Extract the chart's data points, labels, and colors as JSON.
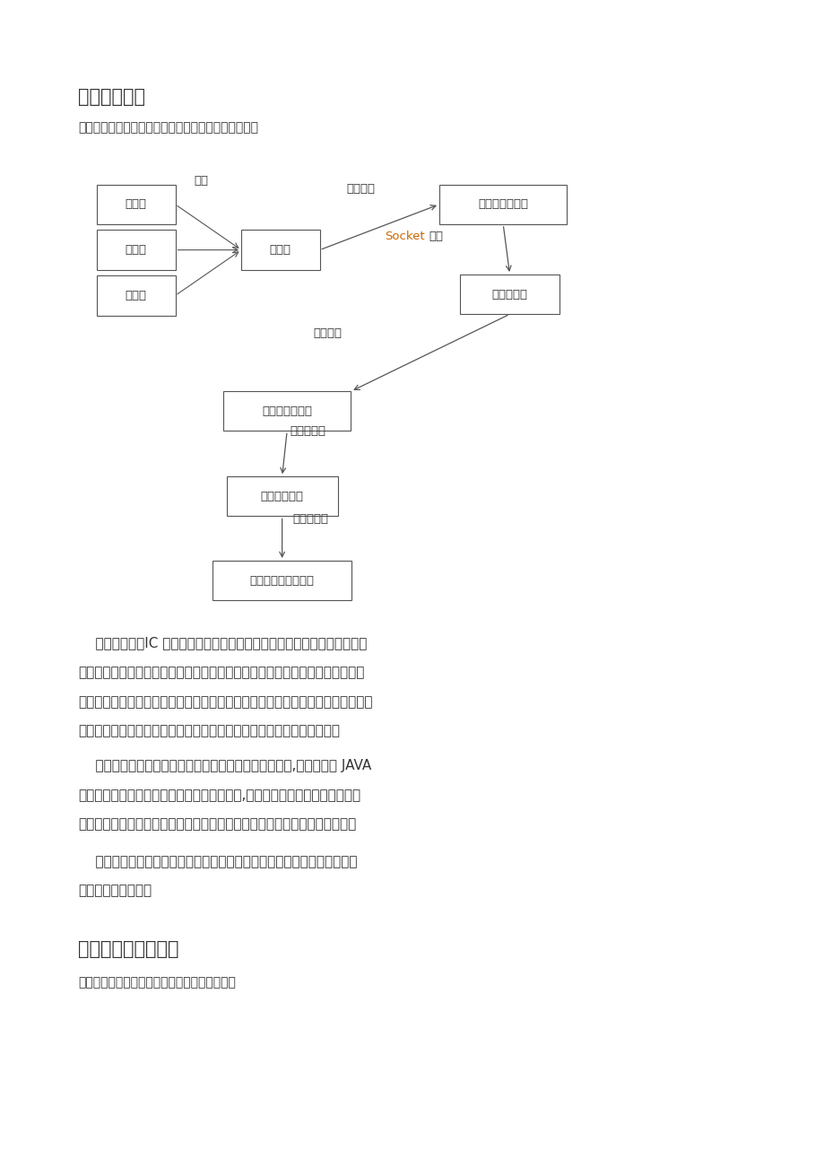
{
  "page_bg": "#ffffff",
  "section3_title": "三、总体方案",
  "section3_subtitle": "基于物联网技术的学生考勤系统网络拓扑结构如下图：",
  "section4_title": "四、硬件与软件设计",
  "section4_subtitle": "基于物联网技术的校园卡考勤系统硬件逻辑图：",
  "arrow_color": "#555555",
  "box_edge_color": "#555555",
  "socket_color": "#cc6600",
  "text_color": "#333333"
}
